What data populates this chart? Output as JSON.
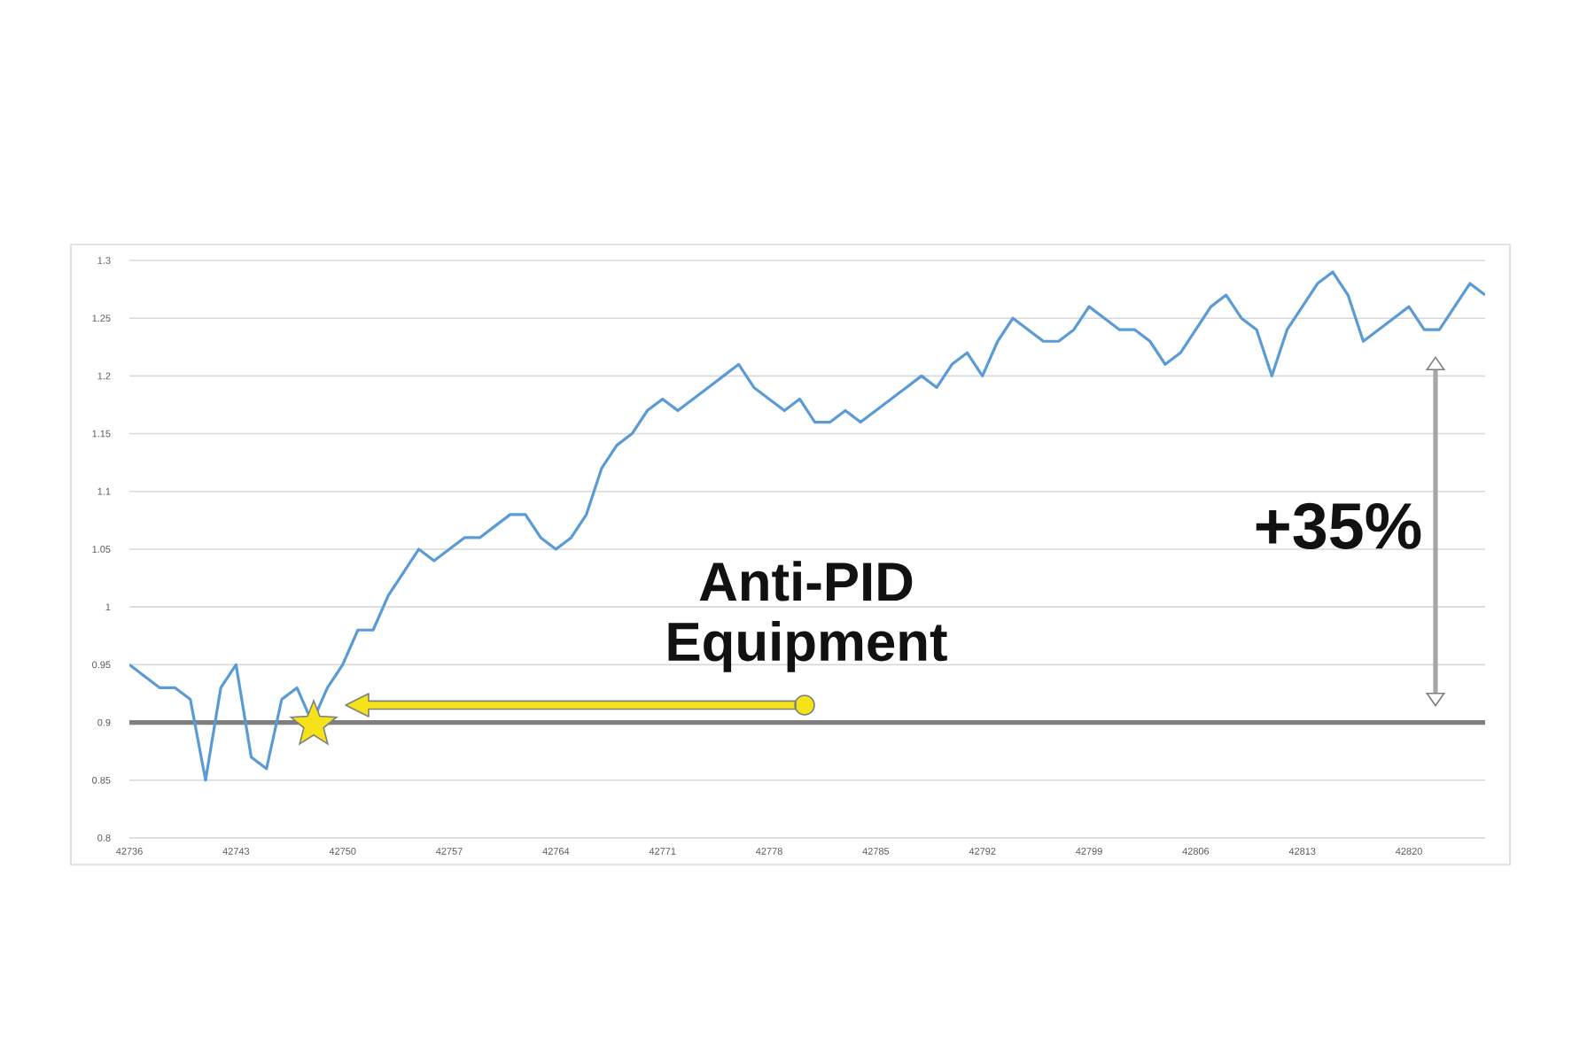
{
  "chart_data": {
    "type": "line",
    "x": [
      42736,
      42737,
      42738,
      42739,
      42740,
      42741,
      42742,
      42743,
      42744,
      42745,
      42746,
      42747,
      42748,
      42749,
      42750,
      42751,
      42752,
      42753,
      42754,
      42755,
      42756,
      42757,
      42758,
      42759,
      42760,
      42761,
      42762,
      42763,
      42764,
      42765,
      42766,
      42767,
      42768,
      42769,
      42770,
      42771,
      42772,
      42773,
      42774,
      42775,
      42776,
      42777,
      42778,
      42779,
      42780,
      42781,
      42782,
      42783,
      42784,
      42785,
      42786,
      42787,
      42788,
      42789,
      42790,
      42791,
      42792,
      42793,
      42794,
      42795,
      42796,
      42797,
      42798,
      42799,
      42800,
      42801,
      42802,
      42803,
      42804,
      42805,
      42806,
      42807,
      42808,
      42809,
      42810,
      42811,
      42812,
      42813,
      42814,
      42815,
      42816,
      42817,
      42818,
      42819,
      42820,
      42821,
      42822,
      42823,
      42824,
      42825
    ],
    "values": [
      0.95,
      0.94,
      0.93,
      0.93,
      0.92,
      0.85,
      0.93,
      0.95,
      0.87,
      0.86,
      0.92,
      0.93,
      0.9,
      0.93,
      0.95,
      0.98,
      0.98,
      1.01,
      1.03,
      1.05,
      1.04,
      1.05,
      1.06,
      1.06,
      1.07,
      1.08,
      1.08,
      1.06,
      1.05,
      1.06,
      1.08,
      1.12,
      1.14,
      1.15,
      1.17,
      1.18,
      1.17,
      1.18,
      1.19,
      1.2,
      1.21,
      1.19,
      1.18,
      1.17,
      1.18,
      1.16,
      1.16,
      1.17,
      1.16,
      1.17,
      1.18,
      1.19,
      1.2,
      1.19,
      1.21,
      1.22,
      1.2,
      1.23,
      1.25,
      1.24,
      1.23,
      1.23,
      1.24,
      1.26,
      1.25,
      1.24,
      1.24,
      1.23,
      1.21,
      1.22,
      1.24,
      1.26,
      1.27,
      1.25,
      1.24,
      1.2,
      1.24,
      1.26,
      1.28,
      1.29,
      1.27,
      1.23,
      1.24,
      1.25,
      1.26,
      1.24,
      1.24,
      1.26,
      1.28,
      1.27
    ],
    "color": "#5b9bd5",
    "xlim": [
      42736,
      42825
    ],
    "xticks": [
      42736,
      42743,
      42750,
      42757,
      42764,
      42771,
      42778,
      42785,
      42792,
      42799,
      42806,
      42813,
      42820
    ],
    "ylim": [
      0.8,
      1.3
    ],
    "yticks": [
      0.8,
      0.85,
      0.9,
      0.95,
      1,
      1.05,
      1.1,
      1.15,
      1.2,
      1.25,
      1.3
    ],
    "grid": "y",
    "ref_lines": [
      {
        "axis": "y",
        "value": 0.9,
        "color": "#7f7f7f"
      }
    ],
    "annotations": [
      "Anti-PID Equipment",
      "+35%"
    ]
  }
}
